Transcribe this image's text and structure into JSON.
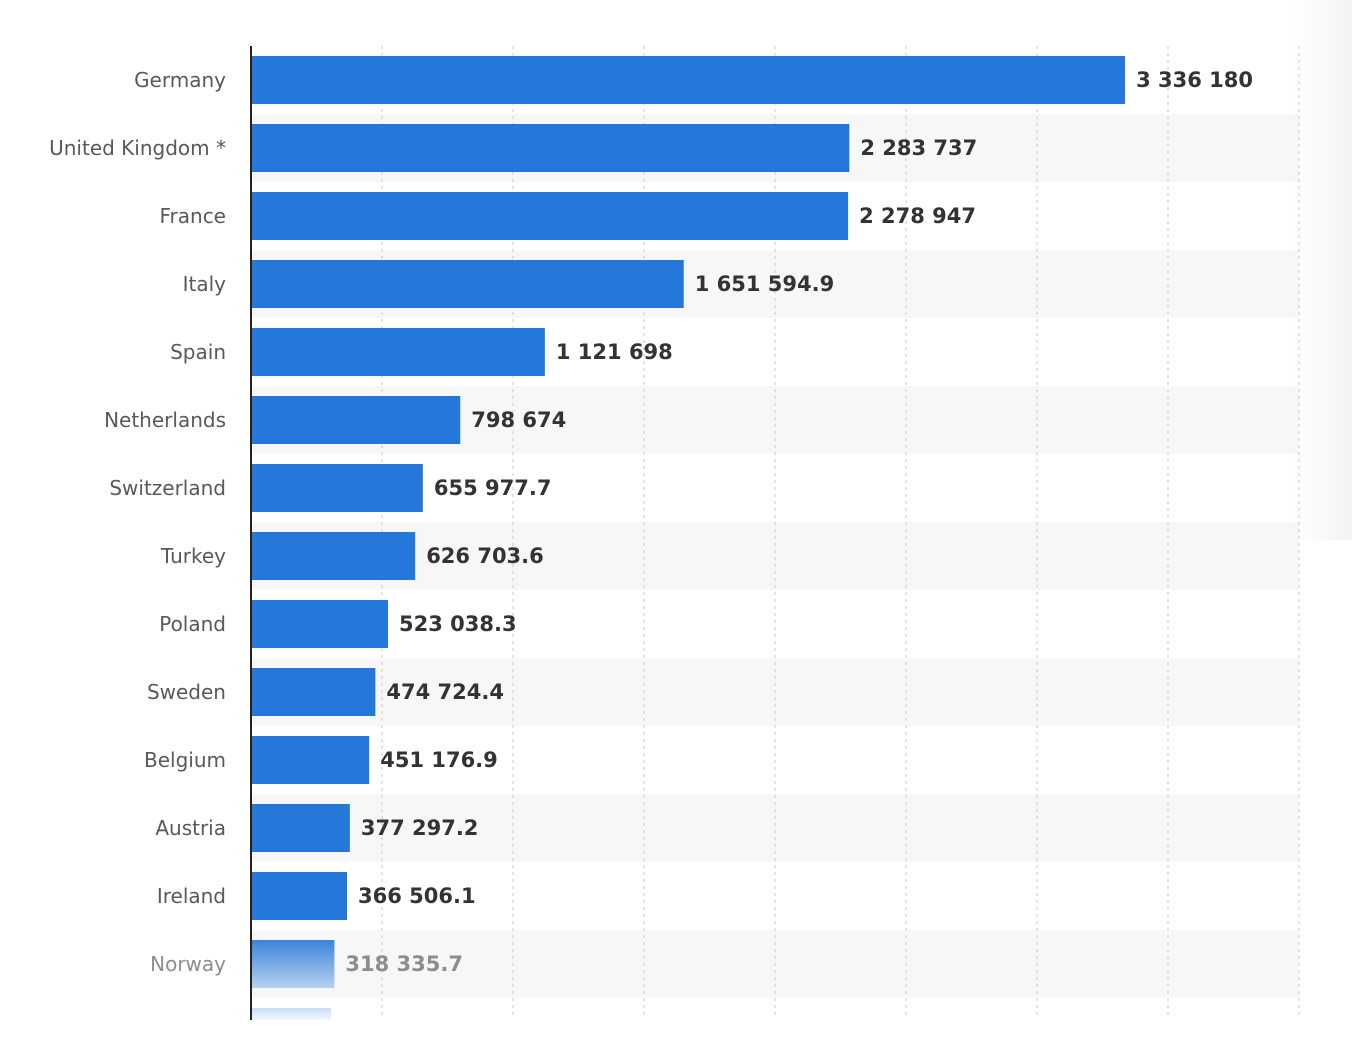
{
  "chart_data": {
    "type": "bar",
    "orientation": "horizontal",
    "categories": [
      "Germany",
      "United Kingdom *",
      "France",
      "Italy",
      "Spain",
      "Netherlands",
      "Switzerland",
      "Turkey",
      "Poland",
      "Sweden",
      "Belgium",
      "Austria",
      "Ireland",
      "Norway"
    ],
    "values": [
      3336180,
      2283737,
      2278947,
      1651594.9,
      1121698,
      798674,
      655977.7,
      626703.6,
      523038.3,
      474724.4,
      451176.9,
      377297.2,
      366506.1,
      318335.7
    ],
    "value_labels": [
      "3 336 180",
      "2 283 737",
      "2 278 947",
      "1 651 594.9",
      "1 121 698",
      "798 674",
      "655 977.7",
      "626 703.6",
      "523 038.3",
      "474 724.4",
      "451 176.9",
      "377 297.2",
      "366 506.1",
      "318 335.7"
    ],
    "xlim": [
      0,
      4000000
    ],
    "grid": true,
    "bar_color": "#2577d9",
    "band_color": "#f7f7f7",
    "faded_from_index": 13
  }
}
